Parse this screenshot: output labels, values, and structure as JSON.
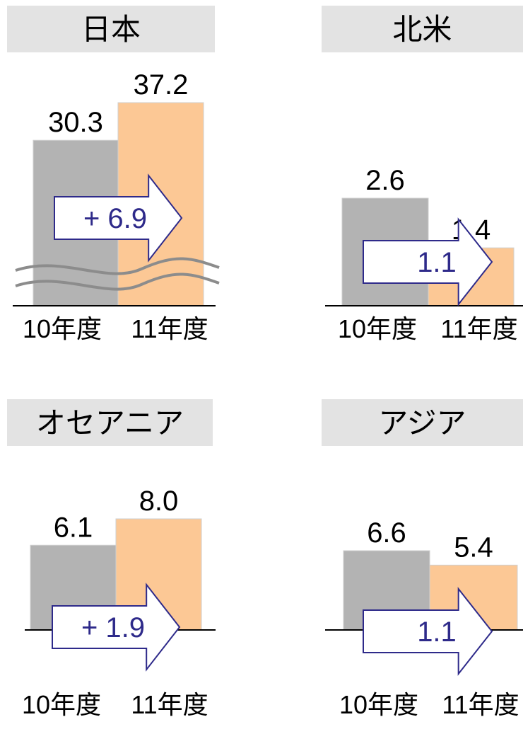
{
  "colors": {
    "bar_prev": "#b3b3b3",
    "bar_curr": "#fcc895",
    "title_bg": "#e3e3e3",
    "arrow_stroke": "#2e2a8a",
    "arrow_text": "#2e2a8a",
    "axis": "#000000",
    "break_line": "#8c8c8c"
  },
  "chart_data": [
    {
      "type": "bar",
      "title": "日本",
      "categories": [
        "10年度",
        "11年度"
      ],
      "values": [
        30.3,
        37.2
      ],
      "value_labels": [
        "30.3",
        "37.2"
      ],
      "change_label": "+ 6.9",
      "axis_break": true
    },
    {
      "type": "bar",
      "title": "北米",
      "categories": [
        "10年度",
        "11年度"
      ],
      "values": [
        2.6,
        1.4
      ],
      "value_labels": [
        "2.6",
        "1.4"
      ],
      "change_label": "1.1",
      "axis_break": false
    },
    {
      "type": "bar",
      "title": "オセアニア",
      "categories": [
        "10年度",
        "11年度"
      ],
      "values": [
        6.1,
        8.0
      ],
      "value_labels": [
        "6.1",
        "8.0"
      ],
      "change_label": "+ 1.9",
      "axis_break": false
    },
    {
      "type": "bar",
      "title": "アジア",
      "categories": [
        "10年度",
        "11年度"
      ],
      "values": [
        6.6,
        5.4
      ],
      "value_labels": [
        "6.6",
        "5.4"
      ],
      "change_label": "1.1",
      "axis_break": false
    }
  ]
}
